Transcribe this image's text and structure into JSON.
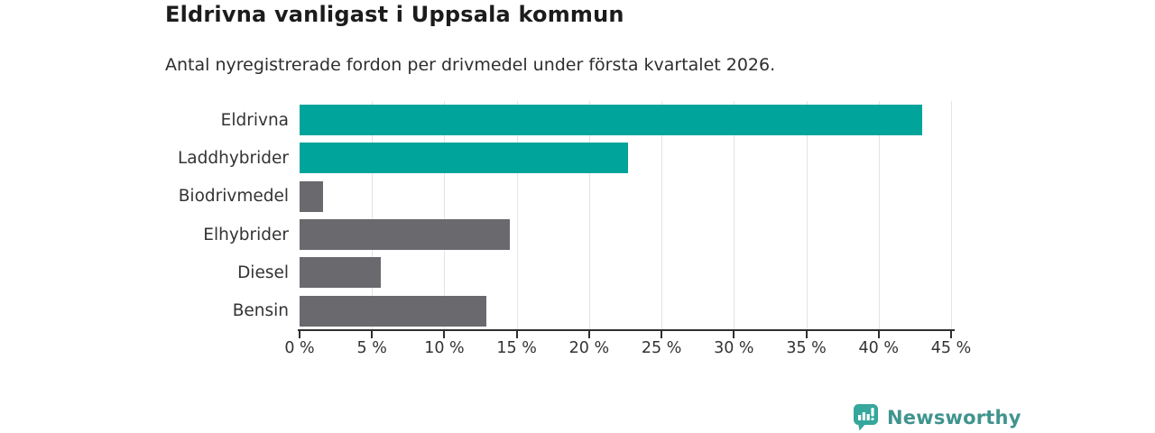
{
  "chart_data": {
    "type": "bar",
    "orientation": "horizontal",
    "title": "Eldrivna vanligast i Uppsala kommun",
    "subtitle": "Antal nyregistrerade fordon per drivmedel under första kvartalet 2026.",
    "categories": [
      "Eldrivna",
      "Laddhybrider",
      "Biodrivmedel",
      "Elhybrider",
      "Diesel",
      "Bensin"
    ],
    "values": [
      43,
      22.7,
      1.6,
      14.5,
      5.6,
      12.9
    ],
    "unit": "%",
    "xlabel": "",
    "ylabel": "",
    "xlim": [
      0,
      45
    ],
    "x_ticks": [
      0,
      5,
      10,
      15,
      20,
      25,
      30,
      35,
      40,
      45
    ],
    "x_tick_labels": [
      "0 %",
      "5 %",
      "10 %",
      "15 %",
      "20 %",
      "25 %",
      "30 %",
      "35 %",
      "40 %",
      "45 %"
    ],
    "grid": "vertical",
    "legend": "none",
    "colors": {
      "highlight": "#00a49a",
      "default": "#69696e",
      "gridline": "#e4e4e4",
      "axis": "#2f2f2f",
      "text": "#333333"
    },
    "bar_colors": [
      "#00a49a",
      "#00a49a",
      "#69696e",
      "#69696e",
      "#69696e",
      "#69696e"
    ]
  },
  "footer": {
    "brand": "Newsworthy",
    "brand_color": "#40948e",
    "icon": "newsworthy-speech-bubble-bar-chart-icon",
    "icon_color": "#35a79c"
  }
}
